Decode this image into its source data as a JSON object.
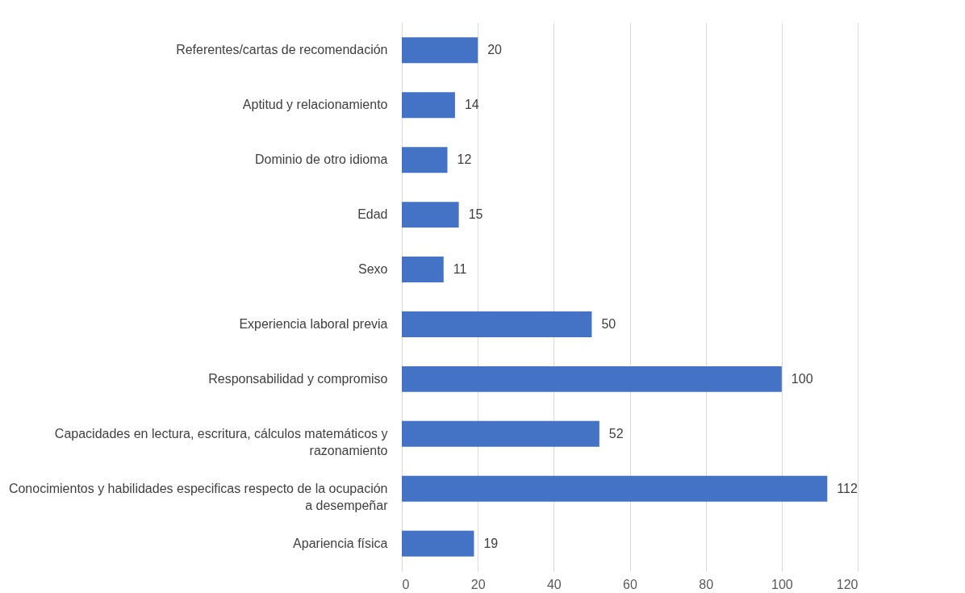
{
  "chart_data": {
    "type": "bar",
    "orientation": "horizontal",
    "categories": [
      "Referentes/cartas de recomendación",
      "Aptitud y relacionamiento",
      "Dominio de otro idioma",
      "Edad",
      "Sexo",
      "Experiencia laboral previa",
      "Responsabilidad y compromiso",
      "Capacidades en lectura, escritura, cálculos matemáticos y razonamiento",
      "Conocimientos y habilidades especificas respecto de la ocupación a desempeñar",
      "Apariencia física"
    ],
    "values": [
      20,
      14,
      12,
      15,
      11,
      50,
      100,
      52,
      112,
      19
    ],
    "color": "#4472c4",
    "xlim": [
      0,
      120
    ],
    "xticks": [
      0,
      20,
      40,
      60,
      80,
      100,
      120
    ],
    "grid": "x",
    "data_labels": true
  }
}
